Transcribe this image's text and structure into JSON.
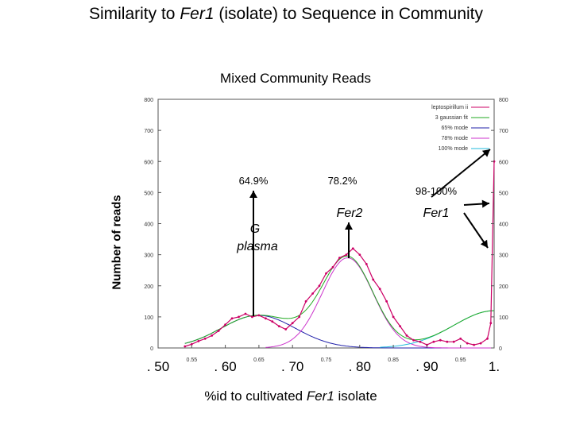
{
  "title_pre": "Similarity to ",
  "title_italic": "Fer1",
  "title_post": " (isolate) to Sequence in Community",
  "chart_data": {
    "type": "line",
    "title": "Mixed Community Reads",
    "ylabel": "Number of reads",
    "xlabel_pre": "%id to cultivated ",
    "xlabel_italic": "Fer1",
    "xlabel_post": " isolate",
    "xlim": [
      0.5,
      1.0
    ],
    "ylim": [
      0,
      800
    ],
    "grid": false,
    "legend_position": "top-right",
    "x_big_ticks": [
      {
        "x": 0.5,
        "label": ". 50"
      },
      {
        "x": 0.6,
        "label": ". 60"
      },
      {
        "x": 0.7,
        "label": ". 70"
      },
      {
        "x": 0.8,
        "label": ". 80"
      },
      {
        "x": 0.9,
        "label": ". 90"
      },
      {
        "x": 1.0,
        "label": "1."
      }
    ],
    "x_small_ticks": [
      {
        "x": 0.55,
        "label": "0.55"
      },
      {
        "x": 0.65,
        "label": "0.65"
      },
      {
        "x": 0.75,
        "label": "0.75"
      },
      {
        "x": 0.85,
        "label": "0.85"
      },
      {
        "x": 0.95,
        "label": "0.95"
      }
    ],
    "y_ticks": [
      0,
      100,
      200,
      300,
      400,
      500,
      600,
      700,
      800
    ],
    "series": [
      {
        "name": "leptospirillum ii",
        "color": "#cc0066",
        "x": [
          0.54,
          0.55,
          0.56,
          0.57,
          0.58,
          0.59,
          0.6,
          0.61,
          0.62,
          0.63,
          0.64,
          0.65,
          0.66,
          0.67,
          0.68,
          0.69,
          0.7,
          0.71,
          0.72,
          0.73,
          0.74,
          0.75,
          0.76,
          0.77,
          0.78,
          0.79,
          0.8,
          0.81,
          0.82,
          0.83,
          0.84,
          0.85,
          0.86,
          0.87,
          0.88,
          0.89,
          0.9,
          0.91,
          0.92,
          0.93,
          0.94,
          0.95,
          0.96,
          0.97,
          0.98,
          0.99,
          0.995,
          1.0
        ],
        "y": [
          5,
          12,
          22,
          30,
          40,
          55,
          75,
          95,
          100,
          110,
          100,
          105,
          95,
          85,
          70,
          60,
          80,
          100,
          150,
          175,
          200,
          240,
          260,
          290,
          300,
          320,
          300,
          270,
          220,
          190,
          150,
          100,
          70,
          40,
          25,
          20,
          10,
          20,
          25,
          20,
          20,
          30,
          15,
          10,
          15,
          30,
          80,
          600
        ]
      },
      {
        "name": "3 gaussian fit",
        "color": "#22aa22"
      },
      {
        "name": "65% mode",
        "color": "#2222aa"
      },
      {
        "name": "78% mode",
        "color": "#cc33cc"
      },
      {
        "name": "100% mode",
        "color": "#22bbdd"
      }
    ],
    "annotations": [
      {
        "label": "64.9%",
        "x": 0.649
      },
      {
        "label": "78.2%",
        "x": 0.782
      },
      {
        "label": "98-100%",
        "x": 0.98
      },
      {
        "label": "G plasma",
        "x": 0.649
      },
      {
        "label": "Fer2",
        "x": 0.782
      },
      {
        "label": "Fer1",
        "x": 0.98
      }
    ]
  },
  "annotation_text": {
    "g_line1": "G",
    "g_line2": "plasma",
    "fer2": "Fer2",
    "fer1": "Fer1"
  }
}
